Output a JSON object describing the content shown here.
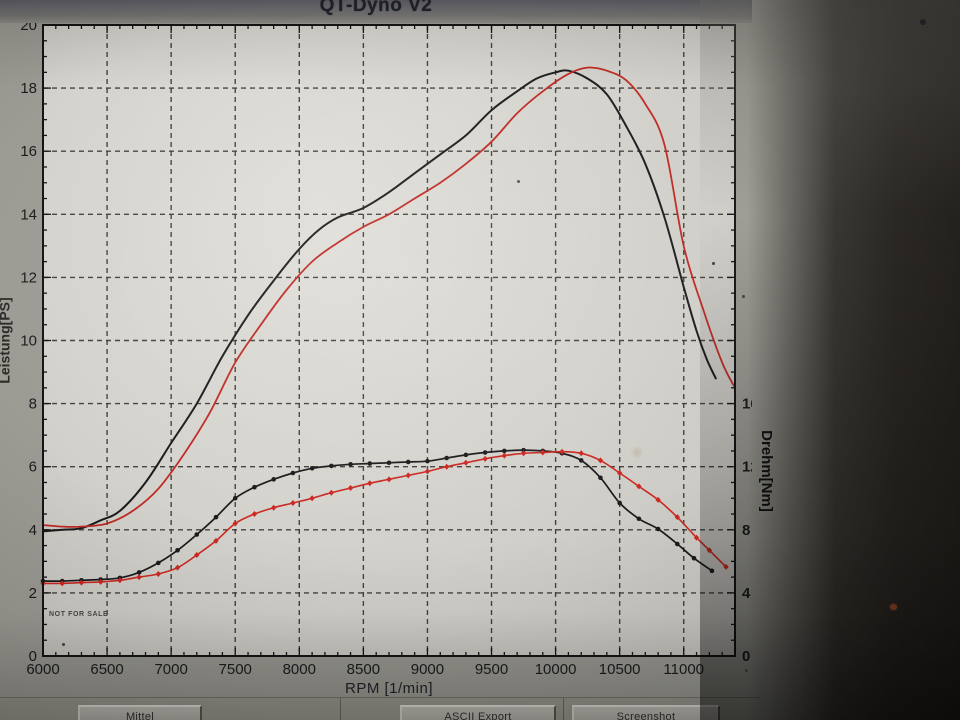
{
  "window": {
    "title": "QT-Dyno V2"
  },
  "watermark": "NOT FOR SALE",
  "toolbar": {
    "buttons": [
      {
        "label": "Mittel"
      },
      {
        "label": "ASCII Export"
      },
      {
        "label": "Screenshot"
      }
    ]
  },
  "colors": {
    "curve_black": "#1b1b1d",
    "curve_red": "#bf2a24",
    "grid": "#33332f",
    "axis": "#141414",
    "plot_bg": "#d6d4ce"
  },
  "chart_data": {
    "type": "line",
    "title": "QT-Dyno V2",
    "xlabel": "RPM [1/min]",
    "ylabel_left": "Leistung[PS]",
    "ylabel_right": "Drehm[Nm]",
    "grid": true,
    "x_axis": {
      "min": 6000,
      "max": 11400,
      "major": 500,
      "minor": 100,
      "tick_labels": [
        "6000",
        "6500",
        "7000",
        "7500",
        "8000",
        "8500",
        "9000",
        "9500",
        "10000",
        "10500",
        "11000"
      ]
    },
    "left_axis": {
      "min": 0,
      "max": 20,
      "major": 2,
      "minor": 0.5,
      "tick_labels": [
        "0",
        "2",
        "4",
        "6",
        "8",
        "10",
        "12",
        "14",
        "16",
        "18",
        "20"
      ]
    },
    "right_axis": {
      "min": 0,
      "max": 40,
      "major": 4,
      "minor": 1,
      "labeled_ticks": [
        0,
        4,
        8,
        12,
        16
      ]
    },
    "series": [
      {
        "name": "power-run1-black",
        "axis": "left",
        "color": "#1b1b1d",
        "marker": "none",
        "width": 2,
        "points": [
          [
            6000,
            3.95
          ],
          [
            6150,
            4.0
          ],
          [
            6300,
            4.05
          ],
          [
            6450,
            4.3
          ],
          [
            6600,
            4.6
          ],
          [
            6800,
            5.5
          ],
          [
            7000,
            6.75
          ],
          [
            7200,
            8.0
          ],
          [
            7400,
            9.5
          ],
          [
            7600,
            10.8
          ],
          [
            7800,
            11.9
          ],
          [
            8000,
            12.9
          ],
          [
            8150,
            13.5
          ],
          [
            8300,
            13.9
          ],
          [
            8500,
            14.2
          ],
          [
            8700,
            14.7
          ],
          [
            8900,
            15.3
          ],
          [
            9100,
            15.9
          ],
          [
            9300,
            16.5
          ],
          [
            9500,
            17.3
          ],
          [
            9700,
            17.9
          ],
          [
            9850,
            18.3
          ],
          [
            10000,
            18.5
          ],
          [
            10100,
            18.55
          ],
          [
            10250,
            18.3
          ],
          [
            10400,
            17.8
          ],
          [
            10550,
            16.8
          ],
          [
            10700,
            15.6
          ],
          [
            10850,
            13.9
          ],
          [
            11000,
            11.7
          ],
          [
            11100,
            10.3
          ],
          [
            11180,
            9.4
          ],
          [
            11250,
            8.8
          ]
        ]
      },
      {
        "name": "power-run2-red",
        "axis": "left",
        "color": "#bf2a24",
        "marker": "none",
        "width": 1.8,
        "points": [
          [
            6000,
            4.15
          ],
          [
            6150,
            4.1
          ],
          [
            6300,
            4.1
          ],
          [
            6500,
            4.2
          ],
          [
            6700,
            4.6
          ],
          [
            6900,
            5.3
          ],
          [
            7100,
            6.4
          ],
          [
            7300,
            7.7
          ],
          [
            7500,
            9.3
          ],
          [
            7700,
            10.5
          ],
          [
            7900,
            11.6
          ],
          [
            8100,
            12.5
          ],
          [
            8300,
            13.1
          ],
          [
            8500,
            13.6
          ],
          [
            8700,
            14.0
          ],
          [
            8900,
            14.5
          ],
          [
            9100,
            15.0
          ],
          [
            9300,
            15.6
          ],
          [
            9500,
            16.3
          ],
          [
            9700,
            17.2
          ],
          [
            9900,
            17.9
          ],
          [
            10100,
            18.45
          ],
          [
            10250,
            18.65
          ],
          [
            10400,
            18.55
          ],
          [
            10550,
            18.25
          ],
          [
            10700,
            17.5
          ],
          [
            10850,
            16.2
          ],
          [
            11000,
            13.0
          ],
          [
            11150,
            11.0
          ],
          [
            11300,
            9.3
          ],
          [
            11400,
            8.5
          ]
        ]
      },
      {
        "name": "torque-run1-black",
        "axis": "right",
        "color": "#1b1b1d",
        "marker": "dot",
        "width": 1.7,
        "points": [
          [
            6000,
            4.75
          ],
          [
            6150,
            4.75
          ],
          [
            6300,
            4.8
          ],
          [
            6450,
            4.85
          ],
          [
            6600,
            4.95
          ],
          [
            6750,
            5.3
          ],
          [
            6900,
            5.9
          ],
          [
            7050,
            6.7
          ],
          [
            7200,
            7.7
          ],
          [
            7350,
            8.8
          ],
          [
            7500,
            10.0
          ],
          [
            7650,
            10.7
          ],
          [
            7800,
            11.2
          ],
          [
            7950,
            11.6
          ],
          [
            8100,
            11.9
          ],
          [
            8250,
            12.05
          ],
          [
            8400,
            12.15
          ],
          [
            8550,
            12.2
          ],
          [
            8700,
            12.25
          ],
          [
            8850,
            12.3
          ],
          [
            9000,
            12.35
          ],
          [
            9150,
            12.55
          ],
          [
            9300,
            12.75
          ],
          [
            9450,
            12.9
          ],
          [
            9600,
            13.0
          ],
          [
            9750,
            13.05
          ],
          [
            9900,
            13.0
          ],
          [
            10050,
            12.85
          ],
          [
            10200,
            12.4
          ],
          [
            10350,
            11.3
          ],
          [
            10500,
            9.7
          ],
          [
            10650,
            8.7
          ],
          [
            10800,
            8.05
          ],
          [
            10950,
            7.1
          ],
          [
            11080,
            6.2
          ],
          [
            11220,
            5.4
          ]
        ]
      },
      {
        "name": "torque-run2-red",
        "axis": "right",
        "color": "#cc2822",
        "marker": "diamond",
        "width": 1.6,
        "points": [
          [
            6000,
            4.6
          ],
          [
            6150,
            4.6
          ],
          [
            6300,
            4.65
          ],
          [
            6450,
            4.7
          ],
          [
            6600,
            4.8
          ],
          [
            6750,
            5.0
          ],
          [
            6900,
            5.2
          ],
          [
            7050,
            5.6
          ],
          [
            7200,
            6.4
          ],
          [
            7350,
            7.3
          ],
          [
            7500,
            8.4
          ],
          [
            7650,
            9.0
          ],
          [
            7800,
            9.4
          ],
          [
            7950,
            9.7
          ],
          [
            8100,
            10.0
          ],
          [
            8250,
            10.35
          ],
          [
            8400,
            10.65
          ],
          [
            8550,
            10.95
          ],
          [
            8700,
            11.2
          ],
          [
            8850,
            11.45
          ],
          [
            9000,
            11.7
          ],
          [
            9150,
            12.0
          ],
          [
            9300,
            12.25
          ],
          [
            9450,
            12.5
          ],
          [
            9600,
            12.7
          ],
          [
            9750,
            12.85
          ],
          [
            9900,
            12.9
          ],
          [
            10050,
            12.95
          ],
          [
            10200,
            12.85
          ],
          [
            10350,
            12.4
          ],
          [
            10500,
            11.6
          ],
          [
            10650,
            10.75
          ],
          [
            10800,
            9.9
          ],
          [
            10950,
            8.8
          ],
          [
            11100,
            7.5
          ],
          [
            11200,
            6.7
          ],
          [
            11330,
            5.65
          ]
        ]
      }
    ]
  }
}
